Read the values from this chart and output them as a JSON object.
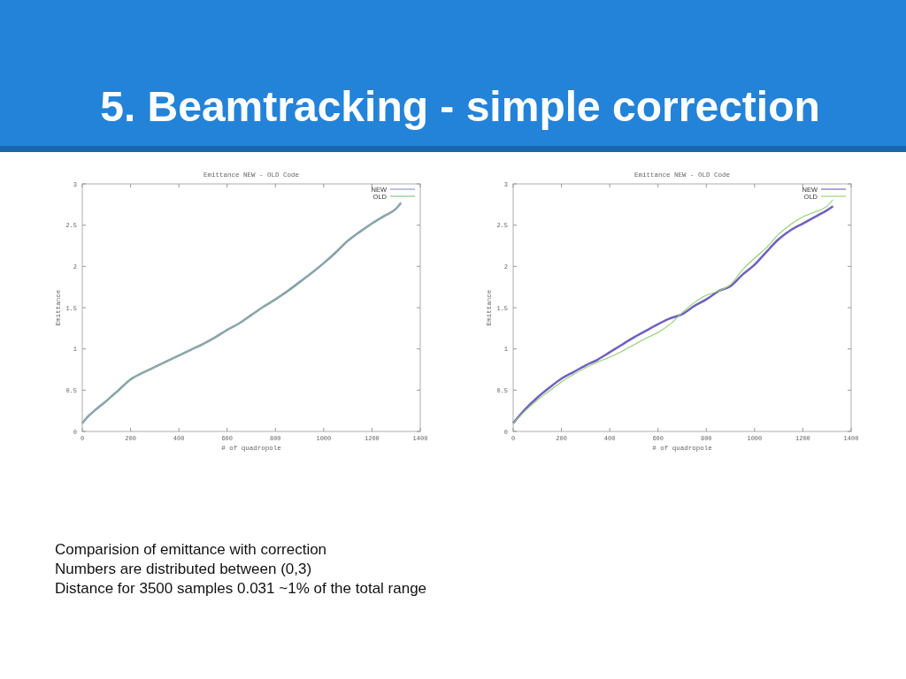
{
  "chart_data": [
    {
      "type": "line",
      "title": "Emittance NEW - OLD Code",
      "xlabel": "# of quadropole",
      "ylabel": "Emittance",
      "xlim": [
        0,
        1400
      ],
      "xticks": [
        0,
        200,
        400,
        600,
        800,
        1000,
        1200,
        1400
      ],
      "ylim": [
        0,
        3
      ],
      "yticks": [
        0,
        0.5,
        1,
        1.5,
        2,
        2.5,
        3
      ],
      "grid": false,
      "legend": "top right",
      "series": [
        {
          "name": "NEW",
          "color": "#8c8cc8",
          "x": [
            0,
            20,
            50,
            100,
            150,
            200,
            250,
            300,
            350,
            400,
            450,
            500,
            550,
            600,
            650,
            700,
            750,
            800,
            850,
            900,
            950,
            1000,
            1050,
            1100,
            1150,
            1200,
            1250,
            1300,
            1320
          ],
          "values": [
            0.1,
            0.17,
            0.25,
            0.37,
            0.5,
            0.63,
            0.71,
            0.78,
            0.85,
            0.92,
            0.99,
            1.06,
            1.14,
            1.23,
            1.31,
            1.41,
            1.51,
            1.6,
            1.7,
            1.81,
            1.92,
            2.04,
            2.17,
            2.31,
            2.42,
            2.52,
            2.61,
            2.7,
            2.77
          ]
        },
        {
          "name": "OLD",
          "color": "#80c080",
          "x": [
            0,
            20,
            50,
            100,
            150,
            200,
            250,
            300,
            350,
            400,
            450,
            500,
            550,
            600,
            650,
            700,
            750,
            800,
            850,
            900,
            950,
            1000,
            1050,
            1100,
            1150,
            1200,
            1250,
            1300,
            1320
          ],
          "values": [
            0.1,
            0.17,
            0.25,
            0.37,
            0.49,
            0.63,
            0.71,
            0.78,
            0.85,
            0.92,
            0.99,
            1.06,
            1.14,
            1.23,
            1.31,
            1.41,
            1.51,
            1.6,
            1.69,
            1.8,
            1.92,
            2.04,
            2.18,
            2.32,
            2.42,
            2.52,
            2.61,
            2.7,
            2.78
          ]
        }
      ]
    },
    {
      "type": "line",
      "title": "Emittance NEW - OLD Code",
      "xlabel": "# of quadropole",
      "ylabel": "Emittance",
      "xlim": [
        0,
        1400
      ],
      "xticks": [
        0,
        200,
        400,
        600,
        800,
        1000,
        1200,
        1400
      ],
      "ylim": [
        0,
        3
      ],
      "yticks": [
        0,
        0.5,
        1,
        1.5,
        2,
        2.5,
        3
      ],
      "grid": false,
      "legend": "top right",
      "series": [
        {
          "name": "NEW",
          "color": "#7060c0",
          "x": [
            0,
            50,
            100,
            150,
            200,
            250,
            300,
            350,
            400,
            450,
            500,
            550,
            600,
            650,
            700,
            750,
            800,
            850,
            900,
            950,
            1000,
            1050,
            1100,
            1150,
            1200,
            1250,
            1300,
            1325
          ],
          "values": [
            0.1,
            0.27,
            0.41,
            0.53,
            0.64,
            0.72,
            0.8,
            0.87,
            0.96,
            1.05,
            1.14,
            1.22,
            1.3,
            1.37,
            1.42,
            1.52,
            1.6,
            1.7,
            1.76,
            1.9,
            2.02,
            2.18,
            2.33,
            2.44,
            2.52,
            2.6,
            2.68,
            2.73
          ]
        },
        {
          "name": "OLD",
          "color": "#90d070",
          "x": [
            0,
            50,
            100,
            150,
            200,
            250,
            300,
            350,
            400,
            450,
            500,
            550,
            600,
            650,
            700,
            750,
            800,
            850,
            900,
            950,
            1000,
            1050,
            1100,
            1150,
            1200,
            1250,
            1300,
            1325
          ],
          "values": [
            0.1,
            0.25,
            0.38,
            0.49,
            0.6,
            0.69,
            0.77,
            0.84,
            0.9,
            0.97,
            1.05,
            1.13,
            1.2,
            1.3,
            1.44,
            1.56,
            1.65,
            1.7,
            1.78,
            1.96,
            2.1,
            2.23,
            2.39,
            2.51,
            2.6,
            2.66,
            2.73,
            2.81
          ]
        }
      ]
    },
    {
      "type": "other",
      "title": "5. Beamtracking - simple correction",
      "annotations": [
        "Comparision of emittance with correction",
        "Numbers are distributed between (0,3)",
        "Distance for 3500 samples  0.031  ~1% of the total range"
      ]
    }
  ]
}
